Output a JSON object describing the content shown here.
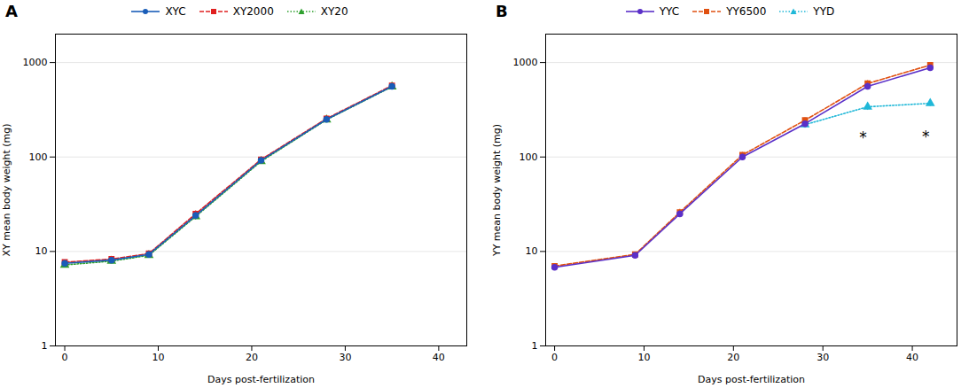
{
  "chart_data": [
    {
      "type": "line",
      "title": "A",
      "x_label": "Days post-fertilization",
      "y_label": "XY mean body weight (mg)",
      "x": [
        0,
        5,
        9,
        14,
        21,
        28,
        35
      ],
      "xlim": [
        -1,
        43
      ],
      "xticks": [
        0,
        10,
        20,
        30,
        40
      ],
      "ylim": [
        1,
        2000
      ],
      "yticks": [
        1,
        10,
        100,
        1000
      ],
      "log": "y",
      "grid": true,
      "legend": "top",
      "series": [
        {
          "name": "XYC",
          "color": "#1a5db8",
          "marker": "circle",
          "line_style": "solid",
          "values": [
            7.5,
            8.1,
            9.3,
            24.0,
            92.0,
            250.0,
            560.0
          ],
          "yerr": [
            0.3,
            0.3,
            0.4,
            2.0,
            6.0,
            18.0,
            35.0
          ]
        },
        {
          "name": "XY2000",
          "color": "#e02020",
          "marker": "square",
          "line_style": "dashed",
          "values": [
            7.7,
            8.3,
            9.5,
            25.0,
            94.0,
            255.0,
            570.0
          ],
          "yerr": [
            0.3,
            0.3,
            0.4,
            2.0,
            6.0,
            18.0,
            35.0
          ]
        },
        {
          "name": "XY20",
          "color": "#2ea02e",
          "marker": "triangle",
          "line_style": "dotted",
          "values": [
            7.2,
            7.9,
            9.1,
            23.5,
            90.0,
            248.0,
            555.0
          ],
          "yerr": [
            0.3,
            0.3,
            0.4,
            2.0,
            6.0,
            18.0,
            35.0
          ]
        }
      ]
    },
    {
      "type": "line",
      "title": "B",
      "x_label": "Days post-fertilization",
      "y_label": "YY mean body weight (mg)",
      "x": [
        0,
        9,
        14,
        21,
        28,
        35,
        42
      ],
      "xlim": [
        -1,
        45
      ],
      "xticks": [
        0,
        10,
        20,
        30,
        40
      ],
      "ylim": [
        1,
        2000
      ],
      "yticks": [
        1,
        10,
        100,
        1000
      ],
      "log": "y",
      "grid": true,
      "legend": "top",
      "annotations": [
        {
          "x": 34.5,
          "y": 185,
          "text": "*"
        },
        {
          "x": 41.5,
          "y": 190,
          "text": "*"
        }
      ],
      "series": [
        {
          "name": "YYC",
          "color": "#5b30c8",
          "marker": "circle",
          "line_style": "solid",
          "values": [
            6.8,
            9.1,
            25.0,
            100.0,
            225.0,
            560.0,
            880.0
          ],
          "yerr": [
            0.3,
            0.5,
            2.0,
            7.0,
            15.0,
            45.0,
            55.0
          ]
        },
        {
          "name": "YY6500",
          "color": "#e05010",
          "marker": "square",
          "line_style": "dashed",
          "values": [
            7.0,
            9.3,
            26.0,
            105.0,
            245.0,
            600.0,
            940.0
          ],
          "yerr": [
            0.3,
            0.5,
            2.0,
            7.0,
            15.0,
            45.0,
            55.0
          ]
        },
        {
          "name": "YYD",
          "color": "#20b8d8",
          "marker": "triangle",
          "line_style": "dotted",
          "values": [
            null,
            null,
            null,
            null,
            220.0,
            340.0,
            370.0
          ],
          "yerr": [
            null,
            null,
            null,
            null,
            18.0,
            28.0,
            28.0
          ]
        }
      ]
    }
  ]
}
